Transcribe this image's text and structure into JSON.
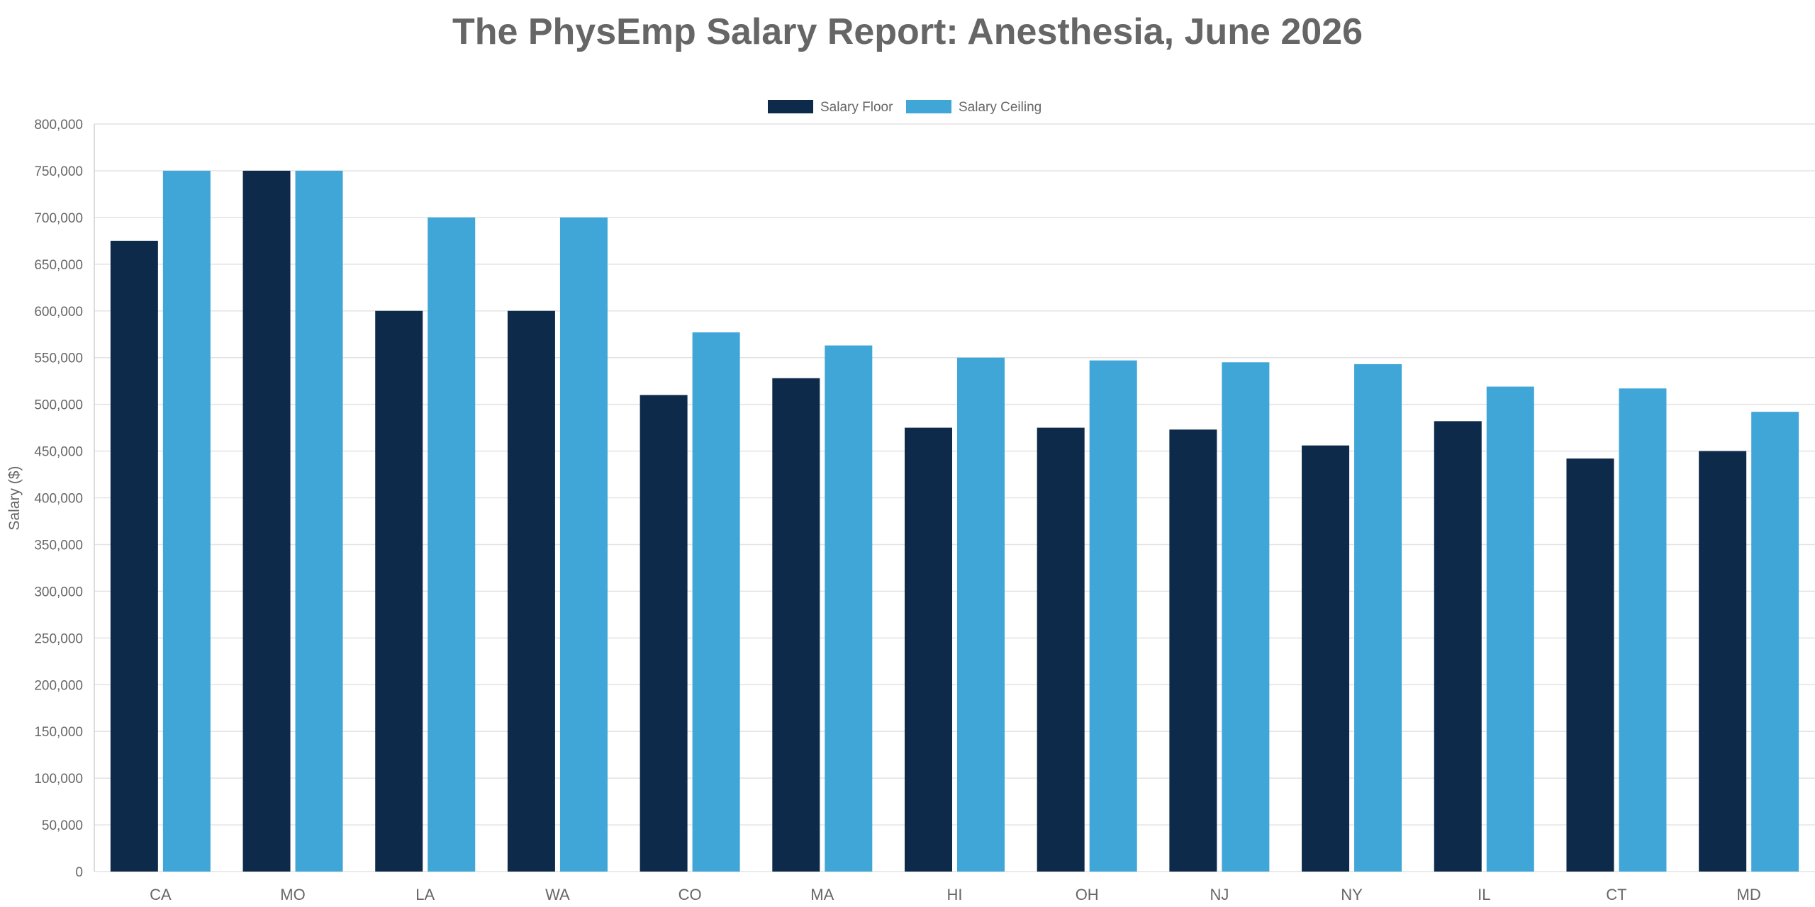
{
  "chart_data": {
    "type": "bar",
    "title": "The PhysEmp Salary Report: Anesthesia, June 2026",
    "xlabel": "",
    "ylabel": "Salary ($)",
    "ylim": [
      0,
      800000
    ],
    "ytick_step": 50000,
    "grid": true,
    "legend_position": "top-center",
    "categories": [
      "CA",
      "MO",
      "LA",
      "WA",
      "CO",
      "MA",
      "HI",
      "OH",
      "NJ",
      "NY",
      "IL",
      "CT",
      "MD"
    ],
    "series": [
      {
        "name": "Salary Floor",
        "color": "#0d2a4b",
        "values": [
          675000,
          750000,
          600000,
          600000,
          510000,
          528000,
          475000,
          475000,
          473000,
          456000,
          482000,
          442000,
          450000
        ]
      },
      {
        "name": "Salary Ceiling",
        "color": "#3fa6d7",
        "values": [
          750000,
          750000,
          700000,
          700000,
          577000,
          563000,
          550000,
          547000,
          545000,
          543000,
          519000,
          517000,
          492000
        ]
      }
    ]
  }
}
